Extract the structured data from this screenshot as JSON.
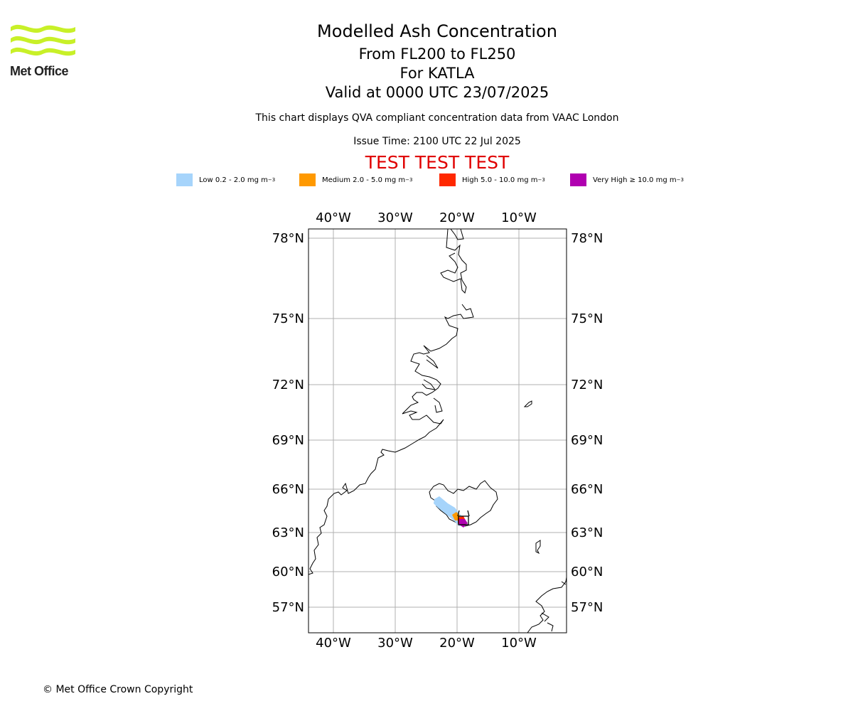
{
  "header": {
    "logo_text": "Met Office",
    "title": "Modelled Ash Concentration",
    "level_range": "From FL200 to FL250",
    "volcano": "For KATLA",
    "valid_time": "Valid at 0000 UTC 23/07/2025",
    "compliance_note": "This chart displays QVA compliant concentration data from VAAC London",
    "issue_time": "Issue Time: 2100 UTC 22 Jul 2025",
    "test_banner": "TEST TEST TEST"
  },
  "legend": [
    {
      "label": "Low 0.2 - 2.0 mg m",
      "sup": "−3",
      "color": "#a6d4fb"
    },
    {
      "label": "Medium 2.0 - 5.0 mg m",
      "sup": "−3",
      "color": "#ff9900"
    },
    {
      "label": "High 5.0 - 10.0 mg m",
      "sup": "−3",
      "color": "#ff2800"
    },
    {
      "label": "Very High  ≥  10.0 mg m",
      "sup": "−3",
      "color": "#b000b0"
    }
  ],
  "map": {
    "lon_ticks": [
      "40°W",
      "30°W",
      "20°W",
      "10°W"
    ],
    "lat_ticks": [
      "78°N",
      "75°N",
      "72°N",
      "69°N",
      "66°N",
      "63°N",
      "60°N",
      "57°N"
    ],
    "extent": {
      "lon_min": -44,
      "lon_max": -2,
      "lat_min": 55,
      "lat_max": 79
    },
    "volcano_name": "KATLA",
    "gridlines": true
  },
  "footer": {
    "copyright": "© Met Office Crown Copyright"
  }
}
